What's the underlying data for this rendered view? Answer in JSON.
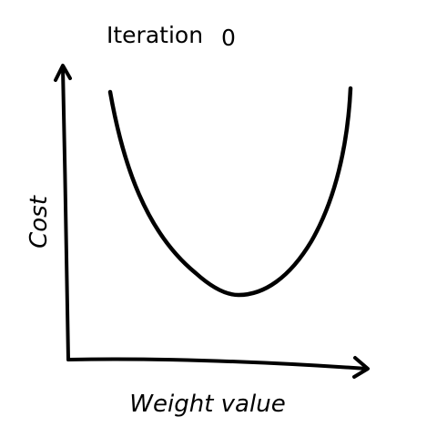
{
  "diagram": {
    "title": {
      "prefix": "Iteration",
      "value": "0"
    },
    "x_axis_label": "Weight value",
    "y_axis_label": "Cost",
    "curve_shape": "u-shaped",
    "colors": {
      "ink": "#000000",
      "background": "#ffffff"
    }
  }
}
